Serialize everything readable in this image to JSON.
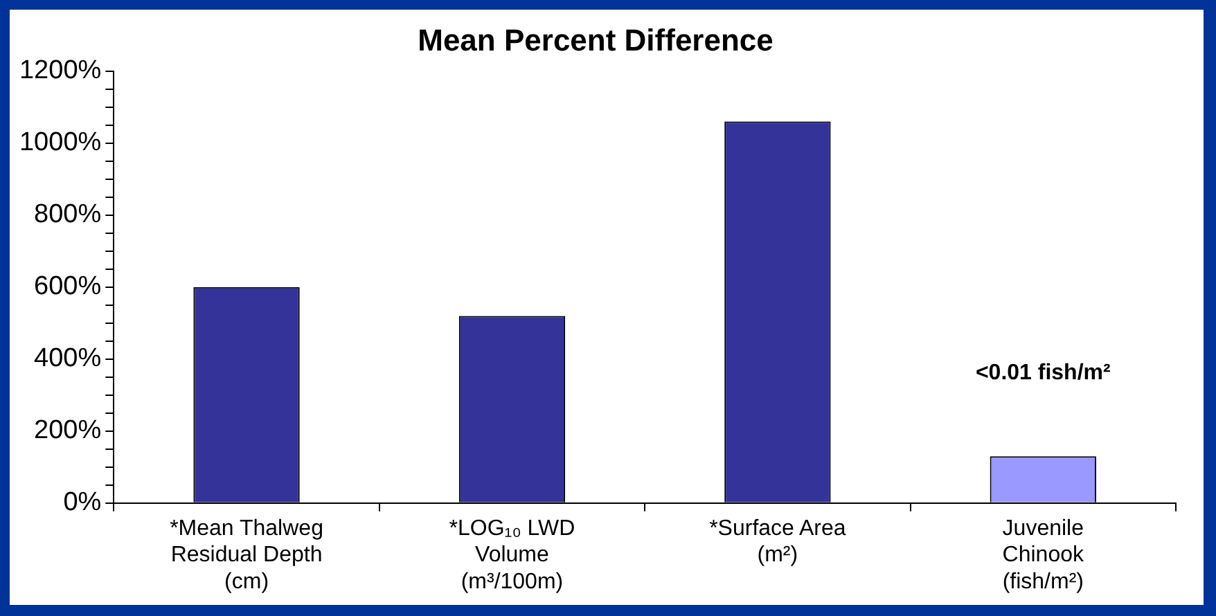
{
  "chart_data": {
    "type": "bar",
    "title": "Mean Percent Difference",
    "categories": [
      "*Mean Thalweg\nResidual Depth\n(cm)",
      "*LOG₁₀ LWD\nVolume\n(m³/100m)",
      "*Surface Area\n(m²)",
      "Juvenile\nChinook\n(fish/m²)"
    ],
    "values": [
      600,
      520,
      1060,
      130
    ],
    "colors": [
      "#333399",
      "#333399",
      "#333399",
      "#9999ff"
    ],
    "ylim": [
      0,
      1200
    ],
    "yticks": [
      {
        "value": 0,
        "label": "0%"
      },
      {
        "value": 50,
        "label": null
      },
      {
        "value": 100,
        "label": null
      },
      {
        "value": 150,
        "label": null
      },
      {
        "value": 200,
        "label": "200%"
      },
      {
        "value": 250,
        "label": null
      },
      {
        "value": 300,
        "label": null
      },
      {
        "value": 350,
        "label": null
      },
      {
        "value": 400,
        "label": "400%"
      },
      {
        "value": 450,
        "label": null
      },
      {
        "value": 500,
        "label": null
      },
      {
        "value": 550,
        "label": null
      },
      {
        "value": 600,
        "label": "600%"
      },
      {
        "value": 650,
        "label": null
      },
      {
        "value": 700,
        "label": null
      },
      {
        "value": 750,
        "label": null
      },
      {
        "value": 800,
        "label": "800%"
      },
      {
        "value": 850,
        "label": null
      },
      {
        "value": 900,
        "label": null
      },
      {
        "value": 950,
        "label": null
      },
      {
        "value": 1000,
        "label": "1000%"
      },
      {
        "value": 1050,
        "label": null
      },
      {
        "value": 1100,
        "label": null
      },
      {
        "value": 1150,
        "label": null
      },
      {
        "value": 1200,
        "label": "1200%"
      }
    ],
    "annotations": [
      "<0.01 fish/m²"
    ],
    "grid": false,
    "legend": false
  }
}
